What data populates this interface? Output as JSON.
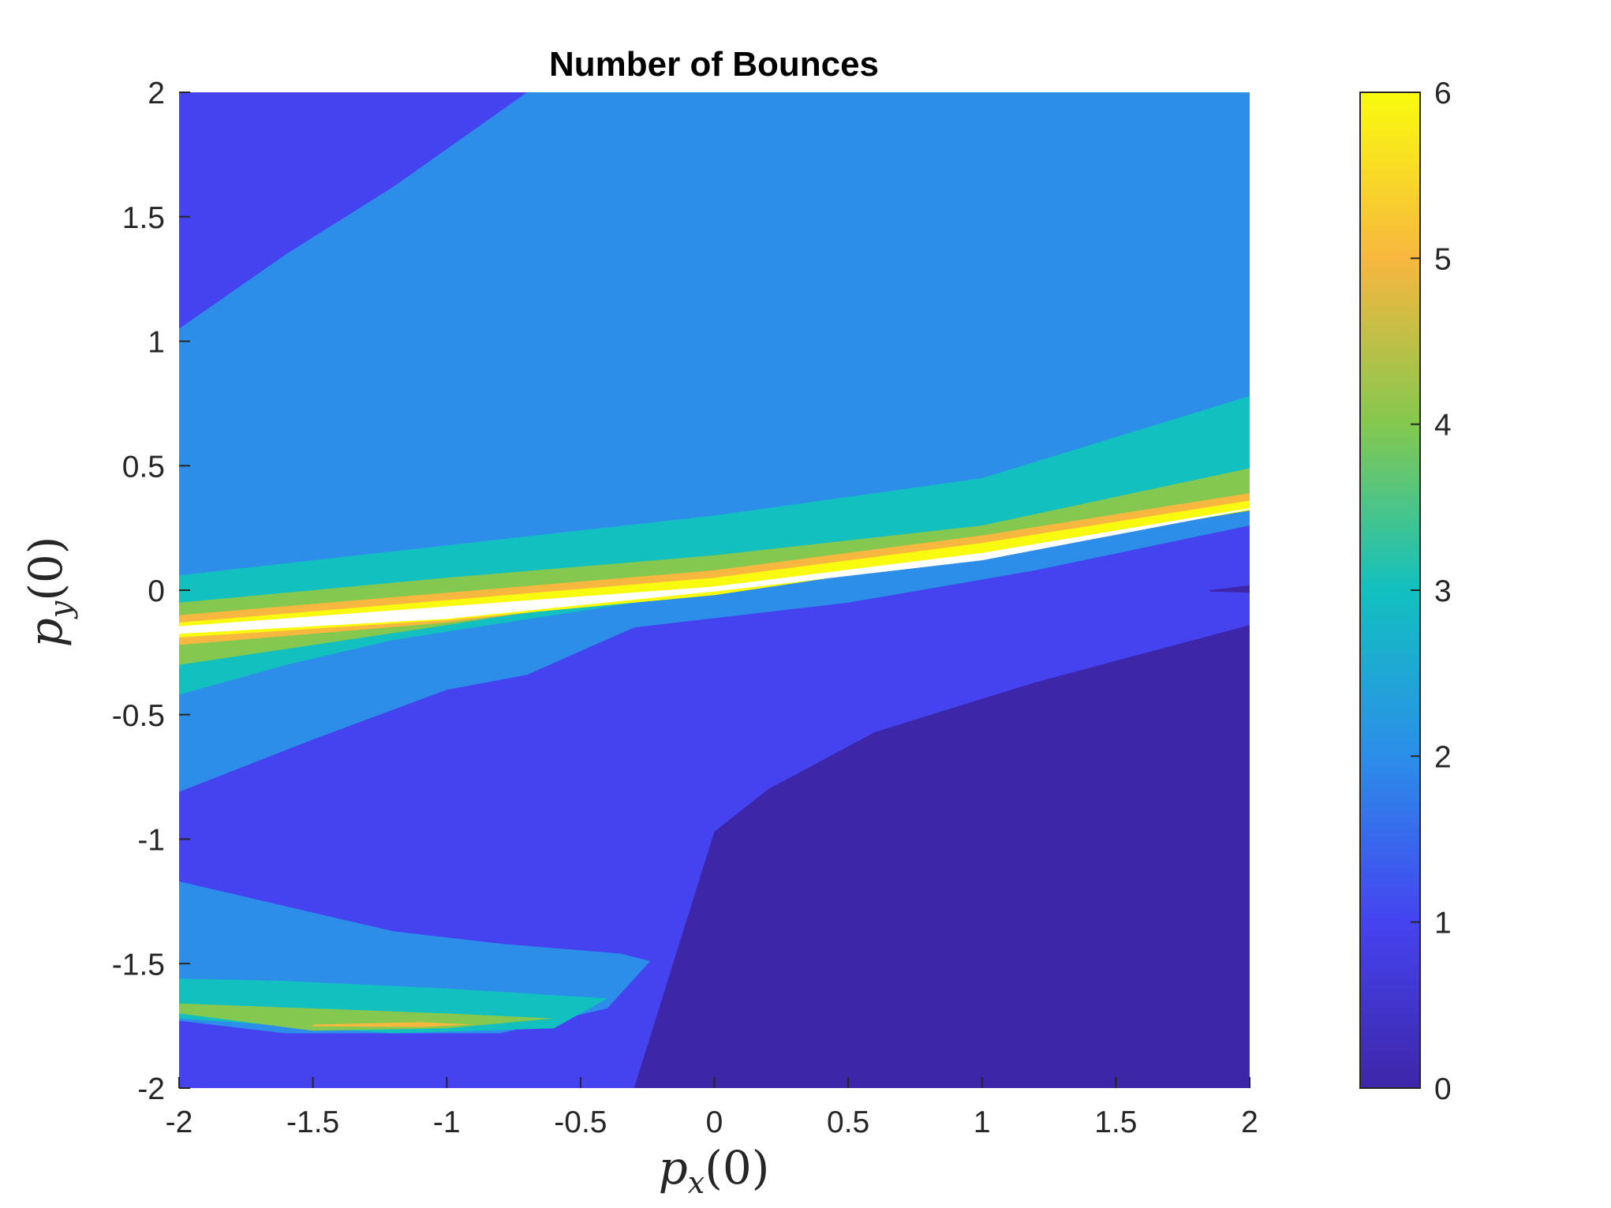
{
  "chart_data": {
    "type": "heatmap",
    "title": "Number of Bounces",
    "xlabel": {
      "base": "p",
      "sub": "x",
      "arg": "(0)"
    },
    "ylabel": {
      "base": "p",
      "sub": "y",
      "arg": "(0)"
    },
    "xlim": [
      -2,
      2
    ],
    "ylim": [
      -2,
      2
    ],
    "xticks": [
      -2,
      -1.5,
      -1,
      -0.5,
      0,
      0.5,
      1,
      1.5,
      2
    ],
    "xtick_labels": [
      "-2",
      "-1.5",
      "-1",
      "-0.5",
      "0",
      "0.5",
      "1",
      "1.5",
      "2"
    ],
    "yticks": [
      -2,
      -1.5,
      -1,
      -0.5,
      0,
      0.5,
      1,
      1.5,
      2
    ],
    "ytick_labels": [
      "-2",
      "-1.5",
      "-1",
      "-0.5",
      "0",
      "0.5",
      "1",
      "1.5",
      "2"
    ],
    "colorbar": {
      "range": [
        0,
        6
      ],
      "ticks": [
        0,
        1,
        2,
        3,
        4,
        5,
        6
      ],
      "tick_labels": [
        "0",
        "1",
        "2",
        "3",
        "4",
        "5",
        "6"
      ],
      "colormap": "parula",
      "stops": [
        "#3e26a8",
        "#4543f0",
        "#2c8ee9",
        "#12c0c0",
        "#84c84f",
        "#f8b73f",
        "#f9fb0e"
      ]
    },
    "grid": false,
    "regions": [
      {
        "value": 2,
        "polygon": [
          [
            -2,
            -2
          ],
          [
            2,
            -2
          ],
          [
            2,
            2
          ],
          [
            -2,
            2
          ]
        ]
      },
      {
        "value": 1,
        "polygon": [
          [
            -2,
            2
          ],
          [
            -0.7,
            2
          ],
          [
            -1.2,
            1.62
          ],
          [
            -1.6,
            1.35
          ],
          [
            -2,
            1.05
          ]
        ]
      },
      {
        "value": 1,
        "polygon": [
          [
            -2,
            -2
          ],
          [
            2,
            -2
          ],
          [
            2,
            0.26
          ],
          [
            1.2,
            0.08
          ],
          [
            0.5,
            -0.05
          ],
          [
            -0.3,
            -0.15
          ],
          [
            -0.7,
            -0.34
          ],
          [
            -1,
            -0.4
          ],
          [
            -1.5,
            -0.6
          ],
          [
            -2,
            -0.81
          ]
        ]
      },
      {
        "value": 2,
        "polygon": [
          [
            -2,
            -1.17
          ],
          [
            -1.6,
            -1.27
          ],
          [
            -1.2,
            -1.37
          ],
          [
            -0.8,
            -1.42
          ],
          [
            -0.35,
            -1.46
          ],
          [
            -0.24,
            -1.49
          ],
          [
            -0.4,
            -1.68
          ],
          [
            -0.8,
            -1.78
          ],
          [
            -1.6,
            -1.78
          ],
          [
            -2,
            -1.73
          ]
        ]
      },
      {
        "value": 3,
        "polygon": [
          [
            -2,
            -1.56
          ],
          [
            -1.6,
            -1.57
          ],
          [
            -1,
            -1.6
          ],
          [
            -0.4,
            -1.64
          ],
          [
            -0.6,
            -1.76
          ],
          [
            -1.2,
            -1.78
          ],
          [
            -2,
            -1.72
          ]
        ]
      },
      {
        "value": 4,
        "polygon": [
          [
            -2,
            -1.66
          ],
          [
            -1.5,
            -1.68
          ],
          [
            -1,
            -1.7
          ],
          [
            -0.6,
            -1.72
          ],
          [
            -1,
            -1.76
          ],
          [
            -1.5,
            -1.77
          ],
          [
            -2,
            -1.7
          ]
        ]
      },
      {
        "value": 5,
        "polygon": [
          [
            -1.5,
            -1.745
          ],
          [
            -1.1,
            -1.735
          ],
          [
            -0.9,
            -1.745
          ],
          [
            -1.1,
            -1.755
          ],
          [
            -1.5,
            -1.752
          ]
        ]
      },
      {
        "value": 0,
        "polygon": [
          [
            -0.3,
            -2
          ],
          [
            2,
            -2
          ],
          [
            2,
            -0.14
          ],
          [
            1.2,
            -0.37
          ],
          [
            0.6,
            -0.57
          ],
          [
            0.2,
            -0.8
          ],
          [
            0,
            -0.97
          ],
          [
            -0.3,
            -2
          ]
        ]
      },
      {
        "value": 3,
        "polygon": [
          [
            -2,
            0.06
          ],
          [
            -1,
            0.18
          ],
          [
            0,
            0.3
          ],
          [
            1,
            0.45
          ],
          [
            2,
            0.78
          ],
          [
            2,
            0.33
          ],
          [
            1,
            0.18
          ],
          [
            0,
            0.0
          ],
          [
            -0.6,
            -0.1
          ],
          [
            -1.2,
            -0.2
          ],
          [
            -1.6,
            -0.3
          ],
          [
            -2,
            -0.42
          ]
        ]
      },
      {
        "value": 4,
        "polygon": [
          [
            -2,
            -0.05
          ],
          [
            -1,
            0.05
          ],
          [
            0,
            0.14
          ],
          [
            1,
            0.26
          ],
          [
            2,
            0.49
          ],
          [
            2,
            0.37
          ],
          [
            1,
            0.19
          ],
          [
            0,
            0.03
          ],
          [
            -1,
            -0.14
          ],
          [
            -2,
            -0.3
          ]
        ]
      },
      {
        "value": 5,
        "polygon": [
          [
            -2,
            -0.1
          ],
          [
            -1,
            -0.01
          ],
          [
            0,
            0.08
          ],
          [
            1,
            0.22
          ],
          [
            2,
            0.39
          ],
          [
            2,
            0.345
          ],
          [
            1,
            0.16
          ],
          [
            0,
            0.0
          ],
          [
            -1,
            -0.13
          ],
          [
            -2,
            -0.22
          ]
        ]
      },
      {
        "value": 6,
        "polygon": [
          [
            -2,
            -0.13
          ],
          [
            -1,
            -0.04
          ],
          [
            0,
            0.05
          ],
          [
            1,
            0.19
          ],
          [
            2,
            0.36
          ],
          [
            2,
            0.32
          ],
          [
            1,
            0.14
          ],
          [
            0,
            -0.02
          ],
          [
            -1,
            -0.12
          ],
          [
            -2,
            -0.19
          ]
        ]
      },
      {
        "value": 0,
        "polygon": [
          [
            1.85,
            0.0
          ],
          [
            2,
            0.02
          ],
          [
            2,
            -0.01
          ],
          [
            1.85,
            -0.005
          ]
        ]
      }
    ],
    "undefined_region": {
      "polygon": [
        [
          -2,
          -0.145
        ],
        [
          -1,
          -0.065
        ],
        [
          0,
          0.015
        ],
        [
          1,
          0.15
        ],
        [
          2,
          0.33
        ],
        [
          2,
          0.325
        ],
        [
          1,
          0.12
        ],
        [
          0,
          -0.005
        ],
        [
          -1,
          -0.115
        ],
        [
          -2,
          -0.175
        ]
      ]
    }
  }
}
